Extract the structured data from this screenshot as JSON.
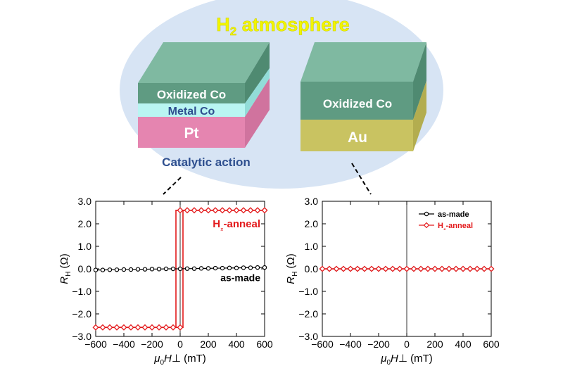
{
  "header": {
    "title": "H₂ atmosphere",
    "title_main": "H",
    "title_sub": "2",
    "title_rest": " atmosphere"
  },
  "left_stack": {
    "top_layer": "Oxidized Co",
    "middle_layer": "Metal Co",
    "bottom_layer": "Pt",
    "caption": "Catalytic action"
  },
  "right_stack": {
    "top_layer": "Oxidized Co",
    "bottom_layer": "Au"
  },
  "colors": {
    "ellipse": "#d7e4f4",
    "title": "#f2f500",
    "oxidized_co_front": "#5f9b82",
    "oxidized_co_top": "#7fb9a1",
    "oxidized_co_side": "#4f8a71",
    "metal_co": "#b9f5f2",
    "pt_front": "#e585b0",
    "pt_side": "#d0739e",
    "au_front": "#c9c361",
    "au_side": "#b3ad4f",
    "caption": "#2e4f8f",
    "as_made": "#000000",
    "h2_anneal": "#e31a1c"
  },
  "chart_data": [
    {
      "type": "line",
      "xlabel": "μ0H⊥ (mT)",
      "ylabel": "RH (Ω)",
      "xlim": [
        -600,
        600
      ],
      "ylim": [
        -3.0,
        3.0
      ],
      "x_ticks": [
        "−600",
        "−400",
        "−200",
        "0",
        "200",
        "400",
        "600"
      ],
      "y_ticks": [
        "3.0",
        "2.0",
        "1.0",
        "0.0",
        "−1.0",
        "−2.0",
        "−3.0"
      ],
      "annotations": [
        "H₂-anneal",
        "as-made"
      ],
      "series": [
        {
          "name": "as-made",
          "color": "#000000",
          "x": [
            -600,
            -550,
            -500,
            -450,
            -400,
            -350,
            -300,
            -250,
            -200,
            -150,
            -100,
            -50,
            0,
            50,
            100,
            150,
            200,
            250,
            300,
            350,
            400,
            450,
            500,
            550,
            600
          ],
          "y": [
            -0.05,
            -0.05,
            -0.04,
            -0.04,
            -0.03,
            -0.03,
            -0.02,
            -0.02,
            -0.01,
            -0.01,
            0.0,
            0.0,
            0.0,
            0.01,
            0.01,
            0.02,
            0.02,
            0.03,
            0.03,
            0.04,
            0.04,
            0.05,
            0.05,
            0.06,
            0.06
          ]
        },
        {
          "name": "H₂-anneal",
          "color": "#e31a1c",
          "x": [
            -600,
            -550,
            -500,
            -450,
            -400,
            -350,
            -300,
            -250,
            -200,
            -150,
            -100,
            -50,
            0,
            50,
            100,
            150,
            200,
            250,
            300,
            350,
            400,
            450,
            500,
            550,
            600
          ],
          "y": [
            -2.6,
            -2.6,
            -2.6,
            -2.6,
            -2.6,
            -2.6,
            -2.6,
            -2.6,
            -2.6,
            -2.6,
            -2.6,
            -2.6,
            -2.6,
            2.6,
            2.6,
            2.6,
            2.6,
            2.6,
            2.6,
            2.6,
            2.6,
            2.6,
            2.6,
            2.6,
            2.6
          ],
          "loop": {
            "switch_up_x": 20,
            "switch_down_x": -30,
            "high": 2.6,
            "low": -2.6
          }
        }
      ]
    },
    {
      "type": "line",
      "xlabel": "μ0H⊥ (mT)",
      "ylabel": "RH (Ω)",
      "xlim": [
        -600,
        600
      ],
      "ylim": [
        -3.0,
        3.0
      ],
      "x_ticks": [
        "−600",
        "−400",
        "−200",
        "0",
        "200",
        "400",
        "600"
      ],
      "y_ticks": [
        "3.0",
        "2.0",
        "1.0",
        "0.0",
        "−1.0",
        "−2.0",
        "−3.0"
      ],
      "legend": {
        "placement": "top-right",
        "entries": [
          "as-made",
          "H₂-anneal"
        ]
      },
      "series": [
        {
          "name": "as-made",
          "color": "#000000",
          "x": [
            -600,
            -550,
            -500,
            -450,
            -400,
            -350,
            -300,
            -250,
            -200,
            -150,
            -100,
            -50,
            0,
            50,
            100,
            150,
            200,
            250,
            300,
            350,
            400,
            450,
            500,
            550,
            600
          ],
          "y": [
            0,
            0,
            0,
            0,
            0,
            0,
            0,
            0,
            0,
            0,
            0,
            0,
            0,
            0,
            0,
            0,
            0,
            0,
            0,
            0,
            0,
            0,
            0,
            0,
            0
          ]
        },
        {
          "name": "H₂-anneal",
          "color": "#e31a1c",
          "x": [
            -600,
            -550,
            -500,
            -450,
            -400,
            -350,
            -300,
            -250,
            -200,
            -150,
            -100,
            -50,
            0,
            50,
            100,
            150,
            200,
            250,
            300,
            350,
            400,
            450,
            500,
            550,
            600
          ],
          "y": [
            0,
            0,
            0,
            0,
            0,
            0,
            0,
            0,
            0,
            0,
            0,
            0,
            0,
            0,
            0,
            0,
            0,
            0,
            0,
            0,
            0,
            0,
            0,
            0,
            0
          ]
        }
      ]
    }
  ]
}
